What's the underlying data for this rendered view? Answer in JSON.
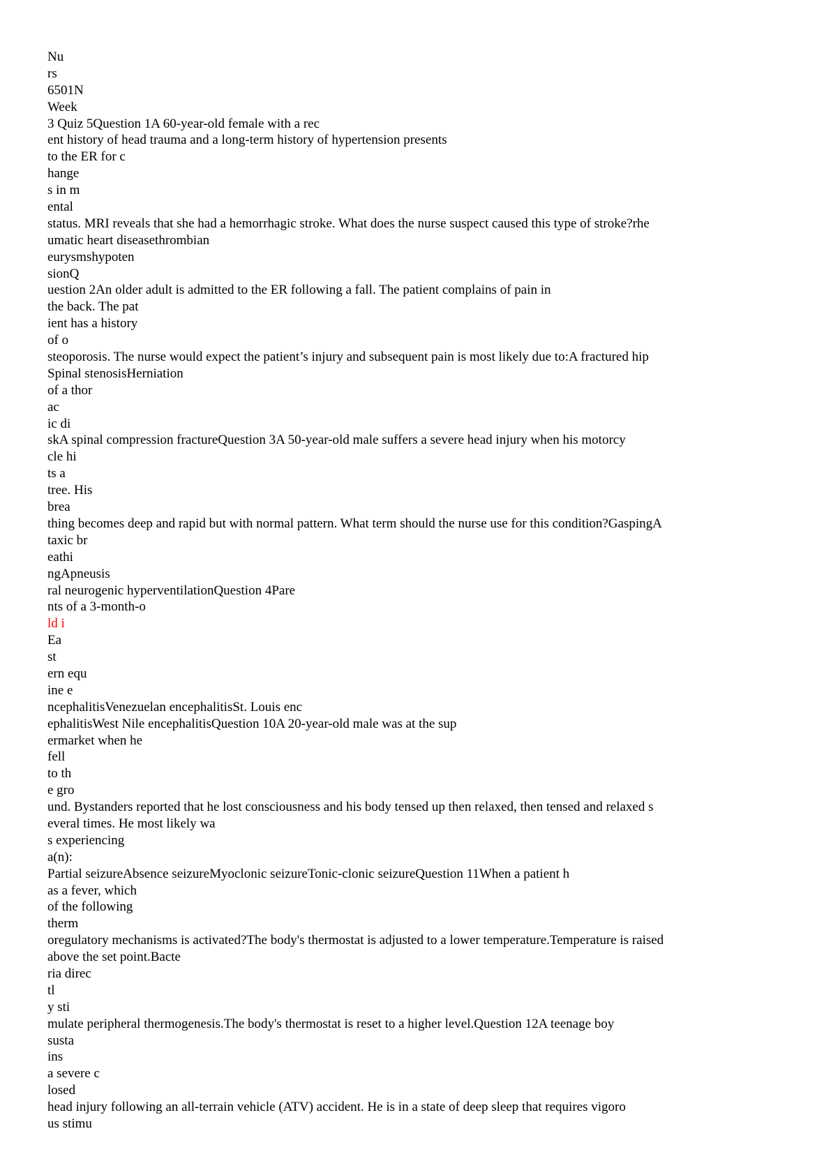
{
  "document": {
    "highlight_color": "#ff0000",
    "lines": [
      {
        "text": "Nu"
      },
      {
        "text": "rs"
      },
      {
        "text": "6501N"
      },
      {
        "text": "Week"
      },
      {
        "text": "3 Quiz 5Question 1A 60-year-old female with a rec"
      },
      {
        "text": "ent history of head trauma and a long-term history of hypertension presents"
      },
      {
        "text": "to the ER for c"
      },
      {
        "text": "hange"
      },
      {
        "text": "s in m"
      },
      {
        "text": "ental"
      },
      {
        "text": "status. MRI reveals that she had a hemorrhagic stroke. What does the nurse suspect caused this type of stroke?rhe"
      },
      {
        "text": "umatic heart diseasethrombian"
      },
      {
        "text": "eurysmshypoten"
      },
      {
        "text": "sionQ"
      },
      {
        "text": "uestion 2An older adult is admitted to the ER following a fall. The patient complains of pain in"
      },
      {
        "text": "the back. The pat"
      },
      {
        "text": "ient has a history"
      },
      {
        "text": "of o"
      },
      {
        "text": "steoporosis. The nurse would expect the patient’s injury and subsequent pain is most likely due to:A fractured hip"
      },
      {
        "text": "Spinal stenosisHerniation"
      },
      {
        "text": "of a thor"
      },
      {
        "text": "ac"
      },
      {
        "text": "ic di"
      },
      {
        "text": "skA spinal compression fractureQuestion 3A 50-year-old male suffers a severe head injury when his motorcy"
      },
      {
        "text": "cle hi"
      },
      {
        "text": "ts a"
      },
      {
        "text": "tree. His"
      },
      {
        "text": "brea"
      },
      {
        "text": "thing becomes deep and rapid but with normal pattern. What term should the nurse use for this condition?GaspingA"
      },
      {
        "text": "taxic br"
      },
      {
        "text": "eathi"
      },
      {
        "text": "ngApneusis"
      },
      {
        "text": "ral neurogenic hyperventilationQuestion 4Pare"
      },
      {
        "text": "nts of a 3-month-o"
      },
      {
        "text": "ld i",
        "highlighted": true
      },
      {
        "text": "Ea"
      },
      {
        "text": "st"
      },
      {
        "text": "ern equ"
      },
      {
        "text": "ine e"
      },
      {
        "text": "ncephalitisVenezuelan encephalitisSt. Louis enc"
      },
      {
        "text": "ephalitisWest Nile encephalitisQuestion 10A 20-year-old male was at the sup"
      },
      {
        "text": "ermarket when he"
      },
      {
        "text": "fell"
      },
      {
        "text": "to th"
      },
      {
        "text": "e gro"
      },
      {
        "text": "und. Bystanders reported that he lost consciousness and his body tensed up then relaxed, then tensed and relaxed s"
      },
      {
        "text": "everal times. He most likely wa"
      },
      {
        "text": "s experiencing"
      },
      {
        "text": "a(n):"
      },
      {
        "text": "Partial seizureAbsence seizureMyoclonic seizureTonic-clonic seizureQuestion 11When a patient h"
      },
      {
        "text": "as a fever, which"
      },
      {
        "text": "of the following"
      },
      {
        "text": "therm"
      },
      {
        "text": "oregulatory mechanisms is activated?The body's thermostat is adjusted to a lower temperature.Temperature is raised"
      },
      {
        "text": "above the set point.Bacte"
      },
      {
        "text": "ria direc"
      },
      {
        "text": "tl"
      },
      {
        "text": "y sti"
      },
      {
        "text": "mulate peripheral thermogenesis.The body's thermostat is reset to a higher level.Question 12A teenage boy"
      },
      {
        "text": "susta"
      },
      {
        "text": "ins"
      },
      {
        "text": "a severe c"
      },
      {
        "text": "losed"
      },
      {
        "text": "head injury following an all-terrain vehicle (ATV) accident. He is in a state of deep sleep that requires vigoro"
      },
      {
        "text": "us stimu"
      }
    ]
  }
}
